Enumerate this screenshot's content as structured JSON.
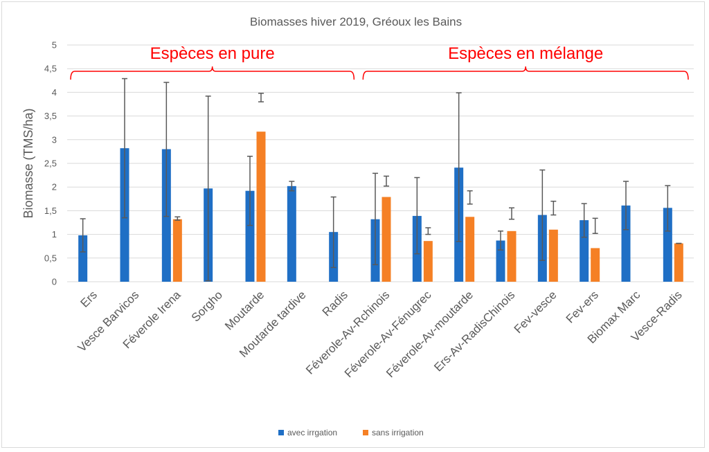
{
  "chart_data": {
    "type": "bar",
    "title": "Biomasses hiver 2019, Gréoux les Bains",
    "xlabel": "",
    "ylabel": "Biomasse (TMS/ha)",
    "ylim": [
      0,
      5
    ],
    "yticks": [
      "0",
      "0,5",
      "1",
      "1,5",
      "2",
      "2,5",
      "3",
      "3,5",
      "4",
      "4,5",
      "5"
    ],
    "ytick_values": [
      0,
      0.5,
      1,
      1.5,
      2,
      2.5,
      3,
      3.5,
      4,
      4.5,
      5
    ],
    "grid": true,
    "legend_position": "bottom",
    "categories": [
      "Ers",
      "Vesce Barvicos",
      "Féverole Irena",
      "Sorgho",
      "Moutarde",
      "Moutarde tardive",
      "Radis",
      "Féverole-Av-Rchinois",
      "Féverole-Av-Fénugrec",
      "Féverole-Av-moutarde",
      "Ers-Av-RadisChinois",
      "Fev-vesce",
      "Fev-ers",
      "Biomax Marc",
      "Vesce-Radis"
    ],
    "series": [
      {
        "name": "avec irrgation",
        "color": "#1f6fc5",
        "values": [
          0.98,
          2.82,
          2.8,
          1.97,
          1.92,
          2.02,
          1.05,
          1.32,
          1.39,
          2.41,
          0.87,
          1.41,
          1.3,
          1.61,
          1.56
        ],
        "error_low": [
          0.63,
          1.35,
          1.38,
          0.02,
          1.19,
          1.92,
          0.3,
          0.36,
          0.59,
          0.85,
          0.67,
          0.45,
          0.94,
          1.1,
          1.07
        ],
        "error_high": [
          1.33,
          4.29,
          4.21,
          3.92,
          2.65,
          2.12,
          1.79,
          2.29,
          2.2,
          3.99,
          1.07,
          2.36,
          1.65,
          2.12,
          2.03
        ]
      },
      {
        "name": "sans irrigation",
        "color": "#f58025",
        "values": [
          null,
          null,
          1.32,
          null,
          3.17,
          null,
          null,
          1.79,
          0.86,
          1.37,
          1.07,
          1.1,
          0.71,
          null,
          0.81
        ],
        "error_low": [
          null,
          null,
          1.3,
          null,
          3.8,
          null,
          null,
          2.02,
          1.0,
          1.64,
          1.32,
          1.41,
          1.02,
          null,
          0.81
        ],
        "error_high": [
          null,
          null,
          1.37,
          null,
          3.98,
          null,
          null,
          2.23,
          1.14,
          1.92,
          1.56,
          1.7,
          1.34,
          null,
          0.81
        ]
      }
    ],
    "annotations": [
      {
        "text": "Espèces en pure",
        "color": "#ff0000",
        "spans": [
          "Ers",
          "Radis"
        ]
      },
      {
        "text": "Espèces en mélange",
        "color": "#ff0000",
        "spans": [
          "Féverole-Av-Rchinois",
          "Vesce-Radis"
        ]
      }
    ]
  }
}
